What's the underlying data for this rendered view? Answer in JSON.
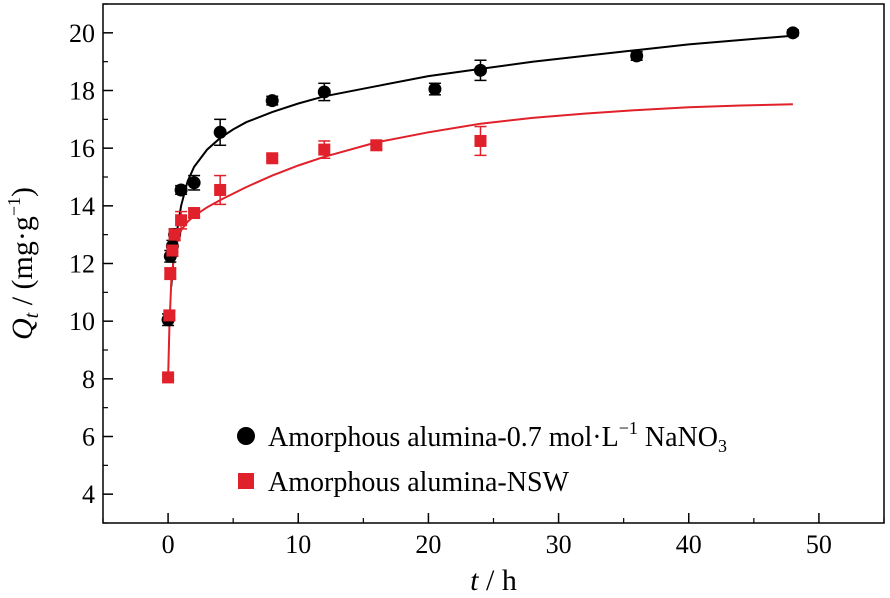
{
  "chart_data": {
    "type": "scatter",
    "title": "",
    "xlabel": {
      "italic": "t",
      "rest": " / h"
    },
    "ylabel": {
      "italic": "Q",
      "sub": "t",
      "rest": " / (mg·g",
      "sup": "−1",
      "close": ")"
    },
    "xlim": [
      -5,
      55
    ],
    "ylim": [
      3,
      21
    ],
    "xticks": [
      0,
      10,
      20,
      30,
      40,
      50
    ],
    "yticks": [
      4,
      6,
      8,
      10,
      12,
      14,
      16,
      18,
      20
    ],
    "grid": false,
    "legend_position": "bottom-right",
    "series": [
      {
        "name": "Amorphous alumina-0.7 mol·L⁻¹ NaNO₃",
        "legend_parts": {
          "main": "Amorphous alumina-0.7 mol·L",
          "sup": "−1",
          "mid": " NaNO",
          "sub": "3"
        },
        "marker": "circle",
        "color": "#000000",
        "points": [
          {
            "x": 0.0,
            "y": 10.05,
            "err": 0.2
          },
          {
            "x": 0.17,
            "y": 12.25,
            "err": 0.2
          },
          {
            "x": 0.33,
            "y": 12.6,
            "err": 0.2
          },
          {
            "x": 0.5,
            "y": 13.0,
            "err": 0.2
          },
          {
            "x": 1.0,
            "y": 14.55,
            "err": 0.15
          },
          {
            "x": 2.0,
            "y": 14.8,
            "err": 0.25
          },
          {
            "x": 4.0,
            "y": 16.55,
            "err": 0.45
          },
          {
            "x": 8.0,
            "y": 17.65,
            "err": 0.15
          },
          {
            "x": 12.0,
            "y": 17.95,
            "err": 0.3
          },
          {
            "x": 20.5,
            "y": 18.05,
            "err": 0.2
          },
          {
            "x": 24.0,
            "y": 18.7,
            "err": 0.35
          },
          {
            "x": 36.0,
            "y": 19.2,
            "err": 0.15
          },
          {
            "x": 48.0,
            "y": 20.0,
            "err": 0.1
          }
        ],
        "fit": {
          "x": [
            0.25,
            0.5,
            1,
            1.5,
            2,
            3,
            4,
            5,
            6,
            8,
            10,
            12,
            16,
            20,
            24,
            28,
            32,
            36,
            40,
            44,
            48
          ],
          "y": [
            11.2,
            12.6,
            14.0,
            14.85,
            15.35,
            15.95,
            16.35,
            16.65,
            16.9,
            17.25,
            17.55,
            17.8,
            18.15,
            18.5,
            18.75,
            19.0,
            19.2,
            19.4,
            19.6,
            19.75,
            19.9
          ]
        }
      },
      {
        "name": "Amorphous alumina-NSW",
        "legend_parts": {
          "main": "Amorphous alumina-NSW",
          "sup": "",
          "mid": "",
          "sub": ""
        },
        "marker": "square",
        "color": "#e0202a",
        "points": [
          {
            "x": 0.0,
            "y": 8.05,
            "err": 0.1
          },
          {
            "x": 0.1,
            "y": 10.2,
            "err": 0.15
          },
          {
            "x": 0.17,
            "y": 11.65,
            "err": 0.2
          },
          {
            "x": 0.33,
            "y": 12.45,
            "err": 0.2
          },
          {
            "x": 0.5,
            "y": 13.0,
            "err": 0.2
          },
          {
            "x": 1.0,
            "y": 13.5,
            "err": 0.3
          },
          {
            "x": 2.0,
            "y": 13.75,
            "err": 0.15
          },
          {
            "x": 4.0,
            "y": 14.55,
            "err": 0.5
          },
          {
            "x": 8.0,
            "y": 15.65,
            "err": 0.1
          },
          {
            "x": 12.0,
            "y": 15.95,
            "err": 0.3
          },
          {
            "x": 16.0,
            "y": 16.1,
            "err": 0.15
          },
          {
            "x": 24.0,
            "y": 16.25,
            "err": 0.5
          }
        ],
        "fit": {
          "x": [
            0,
            0.1,
            0.25,
            0.5,
            1,
            1.5,
            2,
            3,
            4,
            6,
            8,
            10,
            12,
            16,
            20,
            24,
            28,
            32,
            36,
            40,
            44,
            48
          ],
          "y": [
            8.0,
            9.8,
            11.4,
            12.45,
            13.15,
            13.45,
            13.65,
            13.95,
            14.2,
            14.65,
            15.05,
            15.4,
            15.7,
            16.2,
            16.55,
            16.85,
            17.05,
            17.2,
            17.32,
            17.42,
            17.48,
            17.52
          ]
        }
      }
    ]
  }
}
